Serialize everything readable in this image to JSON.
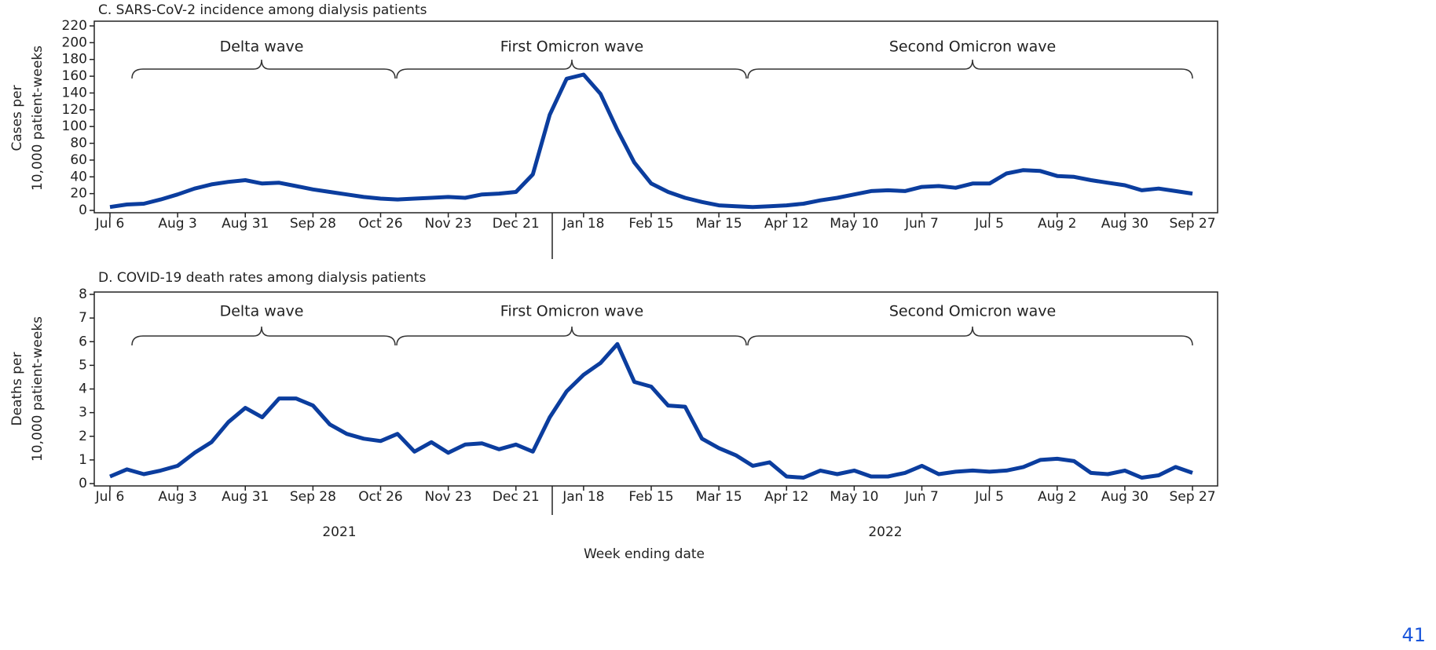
{
  "chart_data": [
    {
      "type": "line",
      "title": "C. SARS-CoV-2 incidence among dialysis patients",
      "y_label": [
        "Cases per",
        "10,000 patient-weeks"
      ],
      "categories": [
        "Jul 6",
        null,
        null,
        null,
        "Aug 3",
        null,
        null,
        null,
        "Aug 31",
        null,
        null,
        null,
        "Sep 28",
        null,
        null,
        null,
        "Oct 26",
        null,
        null,
        null,
        "Nov 23",
        null,
        null,
        null,
        "Dec 21",
        null,
        null,
        null,
        "Jan 18",
        null,
        null,
        null,
        "Feb 15",
        null,
        null,
        null,
        "Mar 15",
        null,
        null,
        null,
        "Apr 12",
        null,
        null,
        null,
        "May 10",
        null,
        null,
        null,
        "Jun 7",
        null,
        null,
        null,
        "Jul 5",
        null,
        null,
        null,
        "Aug 2",
        null,
        null,
        null,
        "Aug 30",
        null,
        null,
        null,
        "Sep 27"
      ],
      "values": [
        4,
        7,
        8,
        13,
        19,
        26,
        31,
        34,
        36,
        32,
        33,
        29,
        25,
        22,
        19,
        16,
        14,
        13,
        14,
        15,
        16,
        15,
        19,
        20,
        22,
        43,
        114,
        157,
        162,
        139,
        96,
        57,
        32,
        22,
        15,
        10,
        6,
        5,
        4,
        5,
        6,
        8,
        12,
        15,
        19,
        23,
        24,
        23,
        28,
        29,
        27,
        32,
        32,
        44,
        48,
        47,
        41,
        40,
        36,
        33,
        30,
        24,
        26,
        23,
        20
      ],
      "color": "#0b3d9e",
      "ylim": [
        0,
        220
      ],
      "yticks": [
        0,
        20,
        40,
        60,
        80,
        100,
        120,
        140,
        160,
        180,
        200,
        220
      ],
      "annotations": [
        "Delta wave",
        "First Omicron wave",
        "Second Omicron wave"
      ]
    },
    {
      "type": "line",
      "title": "D. COVID-19 death rates among dialysis patients",
      "y_label": [
        "Deaths per",
        "10,000 patient-weeks"
      ],
      "x_label": "Week ending date",
      "year_labels": [
        "2021",
        "2022"
      ],
      "categories": [
        "Jul 6",
        null,
        null,
        null,
        "Aug 3",
        null,
        null,
        null,
        "Aug 31",
        null,
        null,
        null,
        "Sep 28",
        null,
        null,
        null,
        "Oct 26",
        null,
        null,
        null,
        "Nov 23",
        null,
        null,
        null,
        "Dec 21",
        null,
        null,
        null,
        "Jan 18",
        null,
        null,
        null,
        "Feb 15",
        null,
        null,
        null,
        "Mar 15",
        null,
        null,
        null,
        "Apr 12",
        null,
        null,
        null,
        "May 10",
        null,
        null,
        null,
        "Jun 7",
        null,
        null,
        null,
        "Jul 5",
        null,
        null,
        null,
        "Aug 2",
        null,
        null,
        null,
        "Aug 30",
        null,
        null,
        null,
        "Sep 27"
      ],
      "values": [
        0.3,
        0.6,
        0.4,
        0.55,
        0.75,
        1.3,
        1.75,
        2.6,
        3.2,
        2.8,
        3.6,
        3.6,
        3.3,
        2.5,
        2.1,
        1.9,
        1.8,
        2.1,
        1.35,
        1.75,
        1.3,
        1.65,
        1.7,
        1.45,
        1.65,
        1.35,
        2.8,
        3.9,
        4.6,
        5.1,
        5.9,
        4.3,
        4.1,
        3.3,
        3.25,
        1.9,
        1.5,
        1.2,
        0.75,
        0.9,
        0.3,
        0.25,
        0.55,
        0.4,
        0.55,
        0.3,
        0.3,
        0.45,
        0.75,
        0.4,
        0.5,
        0.55,
        0.5,
        0.55,
        0.7,
        1.0,
        1.05,
        0.95,
        0.45,
        0.4,
        0.55,
        0.25,
        0.35,
        0.7,
        0.45
      ],
      "color": "#0b3d9e",
      "ylim": [
        0,
        8
      ],
      "yticks": [
        0,
        1,
        2,
        3,
        4,
        5,
        6,
        7,
        8
      ],
      "annotations": [
        "Delta wave",
        "First Omicron wave",
        "Second Omicron wave"
      ]
    }
  ],
  "page_number": "41"
}
